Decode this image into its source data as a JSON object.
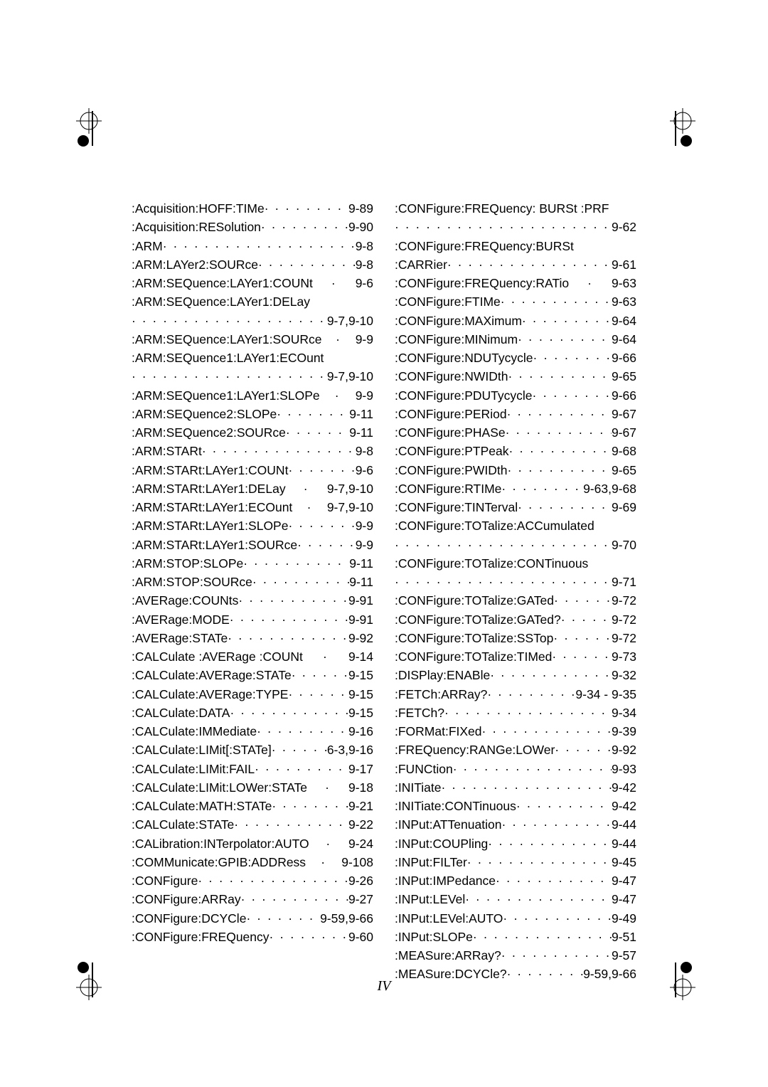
{
  "page_number": "IV",
  "colors": {
    "text": "#000000",
    "background": "#ffffff"
  },
  "font": {
    "body_size_pt": 13,
    "page_num_size_pt": 15
  },
  "left_column": [
    {
      "label": ":Acquisition:HOFF:TIMe",
      "page": "9-89"
    },
    {
      "label": ":Acquisition:RESolution",
      "page": "9-90"
    },
    {
      "label": ":ARM",
      "page": "9-8"
    },
    {
      "label": ":ARM:LAYer2:SOURce",
      "page": "9-8"
    },
    {
      "label": ":ARM:SEQuence:LAYer1:COUNt",
      "page": "9-6",
      "tight": true
    },
    {
      "label": ":ARM:SEQuence:LAYer1:DELay",
      "page": "",
      "nowrap_page": true
    },
    {
      "label": "",
      "page": "9-7,9-10",
      "continuation": true
    },
    {
      "label": ":ARM:SEQuence:LAYer1:SOURce",
      "page": "9-9",
      "tight": true
    },
    {
      "label": ":ARM:SEQuence1:LAYer1:ECOunt",
      "page": "",
      "nowrap_page": true
    },
    {
      "label": "",
      "page": "9-7,9-10",
      "continuation": true
    },
    {
      "label": ":ARM:SEQuence1:LAYer1:SLOPe",
      "page": "9-9",
      "tight": true
    },
    {
      "label": ":ARM:SEQuence2:SLOPe",
      "page": "9-11"
    },
    {
      "label": ":ARM:SEQuence2:SOURce",
      "page": "9-11"
    },
    {
      "label": ":ARM:STARt",
      "page": "9-8"
    },
    {
      "label": ":ARM:STARt:LAYer1:COUNt",
      "page": "9-6"
    },
    {
      "label": ":ARM:STARt:LAYer1:DELay",
      "page": "9-7,9-10",
      "tight": true
    },
    {
      "label": ":ARM:STARt:LAYer1:ECOunt",
      "page": "9-7,9-10",
      "tight": true
    },
    {
      "label": ":ARM:STARt:LAYer1:SLOPe",
      "page": "9-9"
    },
    {
      "label": ":ARM:STARt:LAYer1:SOURce",
      "page": "9-9"
    },
    {
      "label": ":ARM:STOP:SLOPe",
      "page": "9-11"
    },
    {
      "label": ":ARM:STOP:SOURce",
      "page": "9-11"
    },
    {
      "label": ":AVERage:COUNts",
      "page": "9-91"
    },
    {
      "label": ":AVERage:MODE",
      "page": "9-91"
    },
    {
      "label": ":AVERage:STATe",
      "page": "9-92"
    },
    {
      "label": ":CALCulate :AVERage :COUNt",
      "page": "9-14",
      "tight": true
    },
    {
      "label": ":CALCulate:AVERage:STATe",
      "page": "9-15"
    },
    {
      "label": ":CALCulate:AVERage:TYPE",
      "page": "9-15"
    },
    {
      "label": ":CALCulate:DATA",
      "page": "9-15"
    },
    {
      "label": ":CALCulate:IMMediate",
      "page": "9-16"
    },
    {
      "label": ":CALCulate:LIMit[:STATe]",
      "page": "6-3,9-16"
    },
    {
      "label": ":CALCulate:LIMit:FAIL",
      "page": "9-17"
    },
    {
      "label": ":CALCulate:LIMit:LOWer:STATe",
      "page": "9-18",
      "tight": true
    },
    {
      "label": ":CALCulate:MATH:STATe",
      "page": "9-21"
    },
    {
      "label": ":CALCulate:STATe",
      "page": "9-22"
    },
    {
      "label": ":CALibration:INTerpolator:AUTO",
      "page": "9-24",
      "tight": true
    },
    {
      "label": ":COMMunicate:GPIB:ADDRess",
      "page": "9-108",
      "tight": true
    },
    {
      "label": ":CONFigure",
      "page": "9-26"
    },
    {
      "label": ":CONFigure:ARRay",
      "page": "9-27"
    },
    {
      "label": ":CONFigure:DCYCle",
      "page": "9-59,9-66"
    },
    {
      "label": ":CONFigure:FREQuency",
      "page": "9-60"
    }
  ],
  "right_column": [
    {
      "label": ":CONFigure:FREQuency: BURSt :PRF",
      "page": "",
      "nowrap_page": true
    },
    {
      "label": "",
      "page": "9-62",
      "continuation": true
    },
    {
      "label": ":CONFigure:FREQuency:BURSt",
      "page": "",
      "nowrap_page": true
    },
    {
      "label": ":CARRier",
      "page": "9-61"
    },
    {
      "label": ":CONFigure:FREQuency:RATio",
      "page": "9-63",
      "tight": true
    },
    {
      "label": ":CONFigure:FTIMe",
      "page": "9-63"
    },
    {
      "label": ":CONFigure:MAXimum",
      "page": "9-64"
    },
    {
      "label": ":CONFigure:MINimum",
      "page": "9-64"
    },
    {
      "label": ":CONFigure:NDUTycycle",
      "page": "9-66"
    },
    {
      "label": ":CONFigure:NWIDth",
      "page": "9-65"
    },
    {
      "label": ":CONFigure:PDUTycycle",
      "page": "9-66"
    },
    {
      "label": ":CONFigure:PERiod",
      "page": "9-67"
    },
    {
      "label": ":CONFigure:PHASe",
      "page": "9-67"
    },
    {
      "label": ":CONFigure:PTPeak",
      "page": "9-68"
    },
    {
      "label": ":CONFigure:PWIDth",
      "page": "9-65"
    },
    {
      "label": ":CONFigure:RTIMe",
      "page": "9-63,9-68"
    },
    {
      "label": ":CONFigure:TINTerval",
      "page": "9-69"
    },
    {
      "label": ":CONFigure:TOTalize:ACCumulated",
      "page": "",
      "nowrap_page": true
    },
    {
      "label": "",
      "page": "9-70",
      "continuation": true
    },
    {
      "label": ":CONFigure:TOTalize:CONTinuous",
      "page": "",
      "nowrap_page": true
    },
    {
      "label": "",
      "page": "9-71",
      "continuation": true
    },
    {
      "label": ":CONFigure:TOTalize:GATed",
      "page": "9-72"
    },
    {
      "label": ":CONFigure:TOTalize:GATed?",
      "page": "9-72"
    },
    {
      "label": ":CONFigure:TOTalize:SSTop",
      "page": "9-72"
    },
    {
      "label": ":CONFigure:TOTalize:TIMed",
      "page": "9-73"
    },
    {
      "label": ":DISPlay:ENABle",
      "page": "9-32"
    },
    {
      "label": ":FETCh:ARRay?",
      "page": "9-34 - 9-35"
    },
    {
      "label": ":FETCh?",
      "page": "9-34"
    },
    {
      "label": ":FORMat:FIXed",
      "page": "9-39"
    },
    {
      "label": ":FREQuency:RANGe:LOWer",
      "page": "9-92"
    },
    {
      "label": ":FUNCtion",
      "page": "9-93"
    },
    {
      "label": ":INITiate",
      "page": "9-42"
    },
    {
      "label": ":INITiate:CONTinuous",
      "page": "9-42"
    },
    {
      "label": ":INPut:ATTenuation",
      "page": "9-44"
    },
    {
      "label": ":INPut:COUPling",
      "page": "9-44"
    },
    {
      "label": ":INPut:FILTer",
      "page": "9-45"
    },
    {
      "label": ":INPut:IMPedance",
      "page": "9-47"
    },
    {
      "label": ":INPut:LEVel",
      "page": "9-47"
    },
    {
      "label": ":INPut:LEVel:AUTO",
      "page": "9-49"
    },
    {
      "label": ":INPut:SLOPe",
      "page": "9-51"
    },
    {
      "label": ":MEASure:ARRay?",
      "page": "9-57"
    },
    {
      "label": ":MEASure:DCYCle?",
      "page": "9-59,9-66"
    }
  ]
}
